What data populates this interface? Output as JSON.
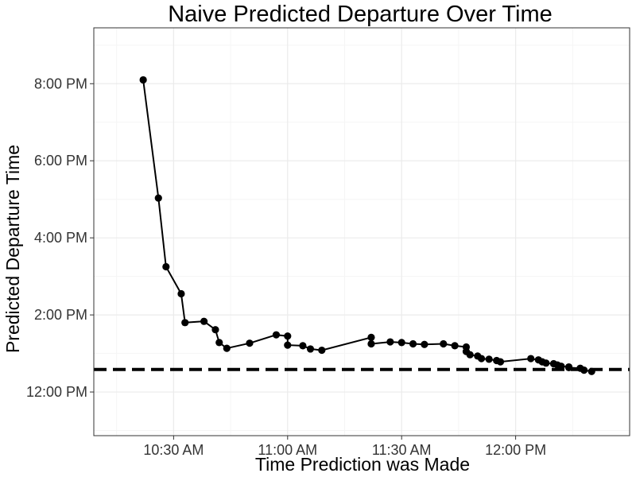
{
  "chart_data": {
    "type": "line",
    "title": "Naive Predicted Departure Over Time",
    "xlabel": "Time Prediction was Made",
    "ylabel": "Predicted Departure Time",
    "xlim": [
      "10:09 AM",
      "12:30 PM"
    ],
    "ylim": [
      "10:52 AM",
      "9:27 PM"
    ],
    "x_ticks": [
      "10:30 AM",
      "11:00 AM",
      "11:30 AM",
      "12:00 PM"
    ],
    "y_ticks": [
      "12:00 PM",
      "2:00 PM",
      "4:00 PM",
      "6:00 PM",
      "8:00 PM"
    ],
    "grid": true,
    "reference_line": {
      "style": "dashed",
      "y": "12:35 PM"
    },
    "series": [
      {
        "x": [
          "10:22 AM",
          "10:26 AM",
          "10:28 AM",
          "10:32 AM",
          "10:33 AM",
          "10:38 AM",
          "10:41 AM",
          "10:42 AM",
          "10:44 AM",
          "10:50 AM",
          "10:57 AM",
          "11:00 AM",
          "11:00 AM",
          "11:04 AM",
          "11:06 AM",
          "11:09 AM",
          "11:22 AM",
          "11:22 AM",
          "11:27 AM",
          "11:30 AM",
          "11:33 AM",
          "11:36 AM",
          "11:41 AM",
          "11:44 AM",
          "11:47 AM",
          "11:47 AM",
          "11:48 AM",
          "11:50 AM",
          "11:51 AM",
          "11:53 AM",
          "11:55 AM",
          "11:56 AM",
          "12:04 PM",
          "12:06 PM",
          "12:07 PM",
          "12:08 PM",
          "12:10 PM",
          "12:11 PM",
          "12:12 PM",
          "12:14 PM",
          "12:14 PM",
          "12:17 PM",
          "12:18 PM",
          "12:20 PM"
        ],
        "y": [
          "8:06 PM",
          "5:02 PM",
          "3:15 PM",
          "2:33 PM",
          "1:48 PM",
          "1:50 PM",
          "1:37 PM",
          "1:17 PM",
          "1:08 PM",
          "1:16 PM",
          "1:29 PM",
          "1:27 PM",
          "1:13 PM",
          "1:12 PM",
          "1:07 PM",
          "1:05 PM",
          "1:25 PM",
          "1:15 PM",
          "1:18 PM",
          "1:17 PM",
          "1:15 PM",
          "1:14 PM",
          "1:15 PM",
          "1:12 PM",
          "1:10 PM",
          "1:03 PM",
          "0:58 PM",
          "0:56 PM",
          "0:52 PM",
          "0:51 PM",
          "0:49 PM",
          "0:47 PM",
          "0:52 PM",
          "0:50 PM",
          "0:47 PM",
          "0:45 PM",
          "0:44 PM",
          "0:42 PM",
          "0:40 PM",
          "0:39 PM",
          "0:38 PM",
          "0:37 PM",
          "0:34 PM",
          "0:32 PM"
        ]
      }
    ],
    "colors": {
      "line": "#000000",
      "points": "#000000",
      "reference": "#000000",
      "grid_major": "#ebebeb",
      "grid_minor": "#f5f5f5",
      "panel_border": "#333333"
    }
  }
}
